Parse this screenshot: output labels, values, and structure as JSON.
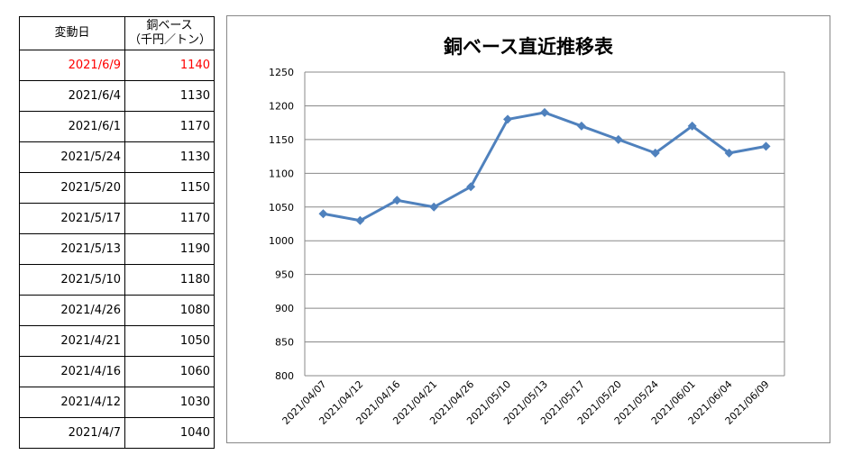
{
  "table": {
    "headers": {
      "date": "変動日",
      "value_line1": "銅ベース",
      "value_line2": "（千円／トン）"
    },
    "rows": [
      {
        "date": "2021/6/9",
        "value": "1140",
        "highlight": true
      },
      {
        "date": "2021/6/4",
        "value": "1130"
      },
      {
        "date": "2021/6/1",
        "value": "1170"
      },
      {
        "date": "2021/5/24",
        "value": "1130"
      },
      {
        "date": "2021/5/20",
        "value": "1150"
      },
      {
        "date": "2021/5/17",
        "value": "1170"
      },
      {
        "date": "2021/5/13",
        "value": "1190"
      },
      {
        "date": "2021/5/10",
        "value": "1180"
      },
      {
        "date": "2021/4/26",
        "value": "1080"
      },
      {
        "date": "2021/4/21",
        "value": "1050"
      },
      {
        "date": "2021/4/16",
        "value": "1060"
      },
      {
        "date": "2021/4/12",
        "value": "1030"
      },
      {
        "date": "2021/4/7",
        "value": "1040"
      }
    ],
    "highlight_color": "#ff0000"
  },
  "chart_data": {
    "type": "line",
    "title": "銅ベース直近推移表",
    "categories": [
      "2021/04/07",
      "2021/04/12",
      "2021/04/16",
      "2021/04/21",
      "2021/04/26",
      "2021/05/10",
      "2021/05/13",
      "2021/05/17",
      "2021/05/20",
      "2021/05/24",
      "2021/06/01",
      "2021/06/04",
      "2021/06/09"
    ],
    "series": [
      {
        "name": "銅ベース",
        "values": [
          1040,
          1030,
          1060,
          1050,
          1080,
          1180,
          1190,
          1170,
          1150,
          1130,
          1170,
          1130,
          1140
        ],
        "color": "#4f81bd"
      }
    ],
    "ylim": [
      800,
      1250
    ],
    "yticks": [
      800,
      850,
      900,
      950,
      1000,
      1050,
      1100,
      1150,
      1200,
      1250
    ],
    "grid": true,
    "legend": "none"
  }
}
